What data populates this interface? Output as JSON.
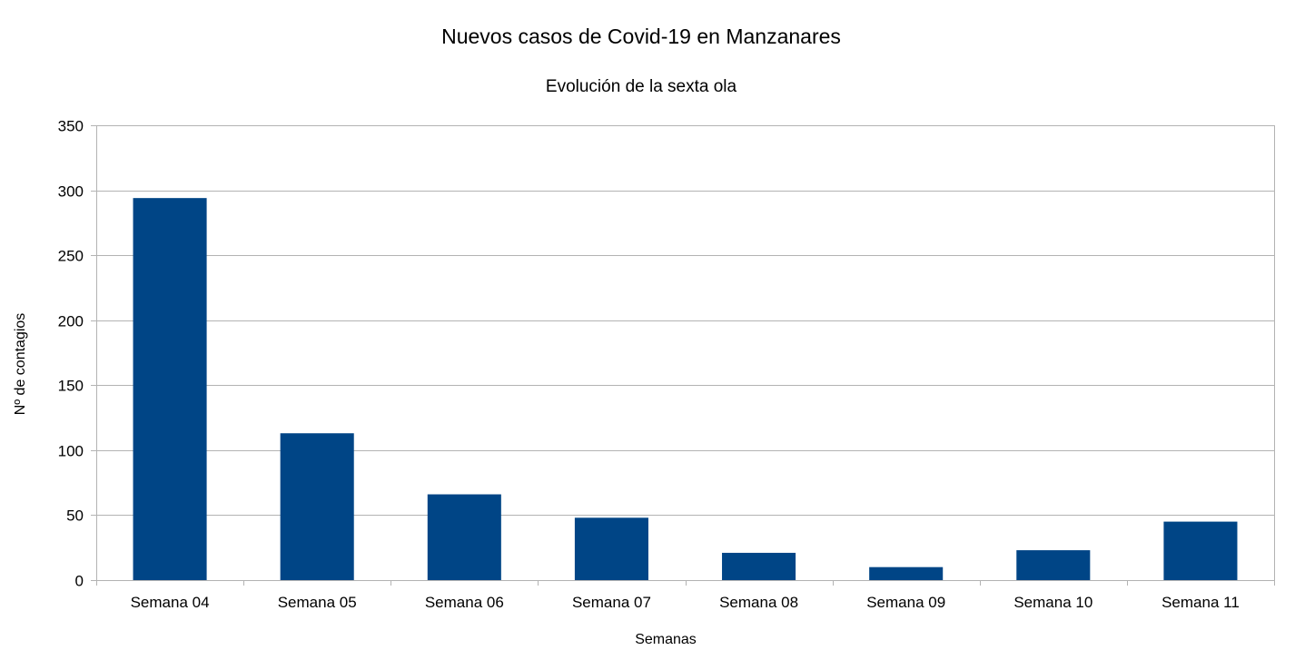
{
  "chart_data": {
    "type": "bar",
    "title": "Nuevos casos de Covid-19 en Manzanares",
    "subtitle": "Evolución de la sexta ola",
    "xlabel": "Semanas",
    "ylabel": "Nº de contagios",
    "categories": [
      "Semana 04",
      "Semana 05",
      "Semana 06",
      "Semana 07",
      "Semana 08",
      "Semana 09",
      "Semana 10",
      "Semana 11"
    ],
    "values": [
      294,
      113,
      66,
      48,
      21,
      10,
      23,
      45
    ],
    "ylim": [
      0,
      350
    ],
    "yticks": [
      0,
      50,
      100,
      150,
      200,
      250,
      300,
      350
    ],
    "grid": true,
    "legend": "none",
    "colors": {
      "bar": "#004586",
      "grid": "#b3b3b3",
      "text": "#000000"
    }
  }
}
